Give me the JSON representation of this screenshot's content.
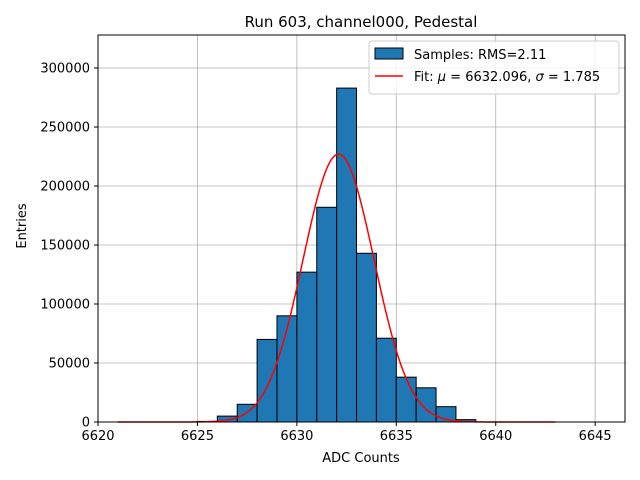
{
  "chart_data": {
    "type": "bar",
    "title": "Run 603, channel000, Pedestal",
    "xlabel": "ADC Counts",
    "ylabel": "Entries",
    "xlim": [
      6620,
      6646.5
    ],
    "ylim": [
      0,
      328000
    ],
    "xticks": [
      6620,
      6625,
      6630,
      6635,
      6640,
      6645
    ],
    "yticks": [
      0,
      50000,
      100000,
      150000,
      200000,
      250000,
      300000
    ],
    "grid": true,
    "legend_position": "top-right",
    "bin_width": 1,
    "series": [
      {
        "name": "Samples: RMS=2.11",
        "type": "histogram",
        "color": "#1f77b4",
        "edge_color": "#000000",
        "bins": [
          6625,
          6626,
          6627,
          6628,
          6629,
          6630,
          6631,
          6632,
          6633,
          6634,
          6635,
          6636,
          6637,
          6638
        ],
        "values": [
          500,
          5000,
          15000,
          70000,
          90000,
          127000,
          182000,
          283000,
          143000,
          71000,
          38000,
          29000,
          13000,
          2000
        ]
      },
      {
        "name_prefix": "Fit: ",
        "name_parts": [
          {
            "text": "μ",
            "italic": true
          },
          {
            "text": " = 6632.096, ",
            "italic": false
          },
          {
            "text": "σ",
            "italic": true
          },
          {
            "text": " = 1.785",
            "italic": false
          }
        ],
        "type": "line",
        "color": "#ff0000",
        "function": "gaussian",
        "mu": 6632.096,
        "sigma": 1.785,
        "amplitude": 227000,
        "x_range": [
          6621,
          6643
        ]
      }
    ]
  }
}
